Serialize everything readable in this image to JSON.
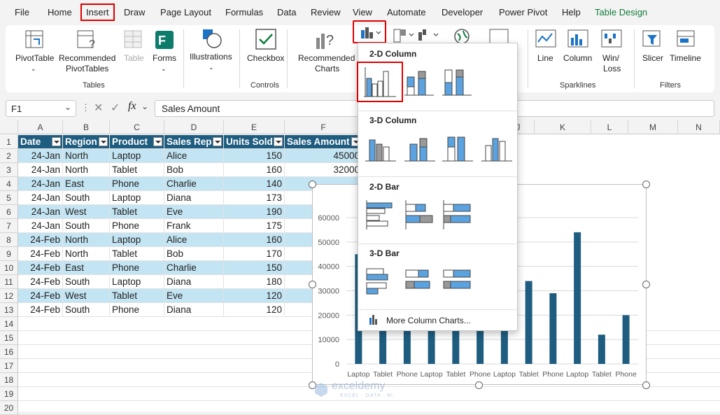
{
  "menu": {
    "tabs": [
      "File",
      "Home",
      "Insert",
      "Draw",
      "Page Layout",
      "Formulas",
      "Data",
      "Review",
      "View",
      "Automate",
      "Developer",
      "Power Pivot",
      "Help",
      "Table Design"
    ],
    "active_tab": "Insert"
  },
  "ribbon": {
    "pivottable": "PivotTable",
    "recommended_pivottables_1": "Recommended",
    "recommended_pivottables_2": "PivotTables",
    "table": "Table",
    "forms": "Forms",
    "illustrations": "Illustrations",
    "checkbox": "Checkbox",
    "recommended_charts_1": "Recommended",
    "recommended_charts_2": "Charts",
    "line": "Line",
    "column": "Column",
    "winloss_1": "Win/",
    "winloss_2": "Loss",
    "slicer": "Slicer",
    "timeline": "Timeline",
    "groups": {
      "tables": "Tables",
      "controls": "Controls",
      "sparklines": "Sparklines",
      "filters": "Filters"
    }
  },
  "formula_bar": {
    "name_box": "F1",
    "fx": "fx",
    "content": "Sales Amount"
  },
  "sheet": {
    "columns": [
      "A",
      "B",
      "C",
      "D",
      "E",
      "F",
      "J",
      "K",
      "L",
      "M",
      "N"
    ],
    "rows": [
      "1",
      "2",
      "3",
      "4",
      "5",
      "6",
      "7",
      "8",
      "9",
      "10",
      "11",
      "12",
      "13",
      "14",
      "15",
      "16",
      "17",
      "18",
      "19",
      "20"
    ],
    "headers": [
      "Date",
      "Region",
      "Product",
      "Sales Rep",
      "Units Sold",
      "Sales Amount"
    ],
    "data": [
      [
        "24-Jan",
        "North",
        "Laptop",
        "Alice",
        "150",
        "45000"
      ],
      [
        "24-Jan",
        "North",
        "Tablet",
        "Bob",
        "160",
        "32000"
      ],
      [
        "24-Jan",
        "East",
        "Phone",
        "Charlie",
        "140",
        ""
      ],
      [
        "24-Jan",
        "South",
        "Laptop",
        "Diana",
        "173",
        ""
      ],
      [
        "24-Jan",
        "West",
        "Tablet",
        "Eve",
        "190",
        ""
      ],
      [
        "24-Jan",
        "South",
        "Phone",
        "Frank",
        "175",
        ""
      ],
      [
        "24-Feb",
        "North",
        "Laptop",
        "Alice",
        "160",
        ""
      ],
      [
        "24-Feb",
        "North",
        "Tablet",
        "Bob",
        "170",
        ""
      ],
      [
        "24-Feb",
        "East",
        "Phone",
        "Charlie",
        "150",
        ""
      ],
      [
        "24-Feb",
        "South",
        "Laptop",
        "Diana",
        "180",
        ""
      ],
      [
        "24-Feb",
        "West",
        "Tablet",
        "Eve",
        "120",
        ""
      ],
      [
        "24-Feb",
        "South",
        "Phone",
        "Diana",
        "120",
        ""
      ]
    ]
  },
  "dropdown": {
    "sections": [
      "2-D Column",
      "3-D Column",
      "2-D Bar",
      "3-D Bar"
    ],
    "more": "More Column Charts..."
  },
  "chart_data": {
    "type": "bar",
    "categories": [
      "Laptop",
      "Tablet",
      "Phone",
      "Laptop",
      "Tablet",
      "Phone",
      "Laptop",
      "Tablet",
      "Phone",
      "Laptop",
      "Tablet",
      "Phone"
    ],
    "values": [
      45000,
      32000,
      28000,
      35000,
      38000,
      30000,
      41000,
      34000,
      29000,
      54000,
      12000,
      20000
    ],
    "ylim": [
      0,
      60000
    ],
    "yticks": [
      "0",
      "10000",
      "20000",
      "30000",
      "40000",
      "50000",
      "60000"
    ],
    "color": "#1f5d80",
    "grid": true
  },
  "watermark": {
    "name": "exceldemy",
    "tagline": "EXCEL · DATA · BI"
  }
}
